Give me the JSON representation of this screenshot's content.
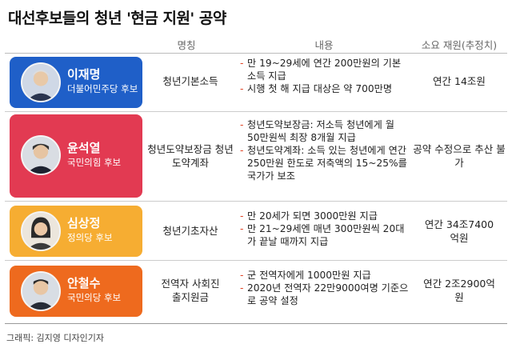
{
  "title": "대선후보들의 청년 '현금 지원' 공약",
  "headers": {
    "name": "명칭",
    "content": "내용",
    "cost": "소요 재원(추정치)"
  },
  "colors": {
    "lee": "#1f5fc8",
    "yoon": "#e23a52",
    "sim": "#f6ad32",
    "ahn": "#ee6a1e"
  },
  "rows": [
    {
      "name": "이재명",
      "party": "더불어민주당 후보",
      "policy": "청년기본소득",
      "items": [
        "만 19~29세에 연간 200만원의 기본소득 지급",
        "시행 첫 해 지급 대상은 약 700만명"
      ],
      "cost": "연간 14조원"
    },
    {
      "name": "윤석열",
      "party": "국민의힘 후보",
      "policy": "청년도약보장금 청년도약계좌",
      "items": [
        "청년도약보장금: 저소득 청년에게 월 50만원씩 최장 8개월 지급",
        "청년도약계좌: 소득 있는 청년에게 연간 250만원 한도로 저축액의 15~25%를 국가가 보조"
      ],
      "cost": "공약 수정으로 추산 불가"
    },
    {
      "name": "심상정",
      "party": "정의당 후보",
      "policy": "청년기초자산",
      "items": [
        "만 20세가 되면 3000만원 지급",
        "만 21~29세엔 매년 300만원씩 20대가 끝날 때까지 지급"
      ],
      "cost": "연간 34조7400억원"
    },
    {
      "name": "안철수",
      "party": "국민의당 후보",
      "policy": "전역자 사회진출지원금",
      "items": [
        "군 전역자에게 1000만원 지급",
        "2020년 전역자 22만9000여명 기준으로 공약 설정"
      ],
      "cost": "연간 2조2900억원"
    }
  ],
  "footer": "그래픽: 김지영 디자인기자"
}
